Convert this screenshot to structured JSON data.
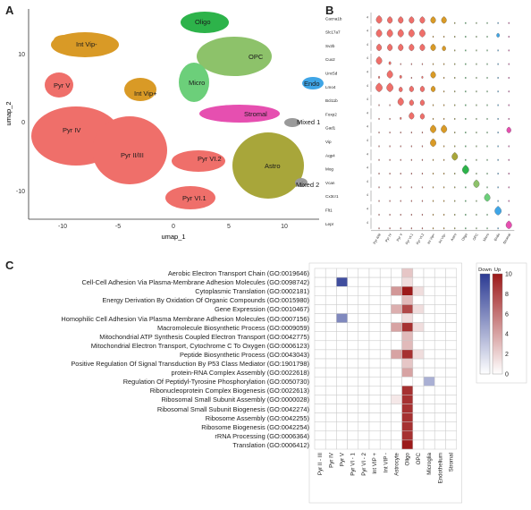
{
  "panels": {
    "A": "A",
    "B": "B",
    "C": "C"
  },
  "umap": {
    "xlabel": "umap_1",
    "ylabel": "umap_2",
    "x_ticks": [
      "-10",
      "-5",
      "0",
      "5",
      "10"
    ],
    "y_ticks": [
      "10",
      "0",
      "-10"
    ],
    "cluster_labels": [
      "Oligo",
      "Int Vip-",
      "OPC",
      "Pyr V",
      "Int Vip+",
      "Micro",
      "Endo",
      "Stromal",
      "Mixed 1",
      "Pyr IV",
      "Pyr II/III",
      "Pyr VI.2",
      "Astro",
      "Mixed 2",
      "Pyr VI.1"
    ],
    "colors": {
      "pyr": "#ef6f6a",
      "int": "#d99a26",
      "oligo": "#2db34a",
      "opc": "#8dc26a",
      "micro": "#6ccf7a",
      "endo": "#3fa5e6",
      "stromal": "#e64fb0",
      "astro": "#a8a63a",
      "mixed": "#9a9a9a"
    }
  },
  "violin": {
    "genes": [
      "Cacna1b",
      "Slc17a7",
      "Sv2b",
      "Cux2",
      "Unc5d",
      "Lmo4",
      "Bcl11b",
      "Foxp2",
      "Gad1",
      "Vip",
      "Aqp4",
      "Mog",
      "Vcan",
      "Cx3cr1",
      "Flt1",
      "Lepr"
    ],
    "clusters": [
      "Pyr II/III",
      "Pyr IV",
      "Pyr V",
      "Pyr VI.1",
      "Pyr VI.2",
      "Int Vip+",
      "Int Vip-",
      "Astro",
      "Oligo",
      "OPC",
      "Micro",
      "Endo",
      "Stromal"
    ]
  },
  "heatmap": {
    "terms": [
      "Aerobic Electron Transport Chain (GO:0019646)",
      "Cell-Cell Adhesion Via Plasma-Membrane Adhesion Molecules (GO:0098742)",
      "Cytoplasmic Translation (GO:0002181)",
      "Energy Derivation By Oxidation Of Organic Compounds (GO:0015980)",
      "Gene Expression (GO:0010467)",
      "Homophilic Cell Adhesion Via Plasma Membrane Adhesion Molecules (GO:0007156)",
      "Macromolecule Biosynthetic Process (GO:0009059)",
      "Mitochondrial ATP Synthesis Coupled Electron Transport (GO:0042775)",
      "Mitochondrial Electron Transport, Cytochrome C To Oxygen (GO:0006123)",
      "Peptide Biosynthetic Process (GO:0043043)",
      "Positive Regulation Of Signal Transduction By P53 Class Mediator (GO:1901798)",
      "protein-RNA Complex Assembly (GO:0022618)",
      "Regulation Of Peptidyl-Tyrosine Phosphorylation (GO:0050730)",
      "Ribonucleoprotein Complex Biogenesis (GO:0022613)",
      "Ribosomal Small Subunit Assembly (GO:0000028)",
      "Ribosomal Small Subunit Biogenesis (GO:0042274)",
      "Ribosome Assembly (GO:0042255)",
      "Ribosome Biogenesis (GO:0042254)",
      "rRNA Processing (GO:0006364)",
      "Translation (GO:0006412)"
    ],
    "columns": [
      "Pyr II - III",
      "Pyr IV",
      "Pyr V",
      "Pyr VI - 1",
      "Pyr VI - 2",
      "Int VIP +",
      "Int VIP -",
      "Astrocyte",
      "Oligo",
      "OPC",
      "Microglia",
      "Endothelium",
      "Stromal"
    ],
    "legend": {
      "down_label": "Down",
      "up_label": "Up",
      "ticks": [
        "10",
        "8",
        "6",
        "4",
        "2",
        "0"
      ],
      "max": 10,
      "down_color": "#2b3a93",
      "up_color": "#9c1a1a"
    },
    "cells": [
      {
        "row": 0,
        "col": 8,
        "dir": "up",
        "v": 2.5
      },
      {
        "row": 1,
        "col": 2,
        "dir": "down",
        "v": 9
      },
      {
        "row": 1,
        "col": 8,
        "dir": "up",
        "v": 1.5
      },
      {
        "row": 2,
        "col": 7,
        "dir": "up",
        "v": 4.5
      },
      {
        "row": 2,
        "col": 8,
        "dir": "up",
        "v": 10
      },
      {
        "row": 2,
        "col": 9,
        "dir": "up",
        "v": 1.5
      },
      {
        "row": 3,
        "col": 8,
        "dir": "up",
        "v": 3
      },
      {
        "row": 4,
        "col": 7,
        "dir": "up",
        "v": 3.5
      },
      {
        "row": 4,
        "col": 8,
        "dir": "up",
        "v": 8
      },
      {
        "row": 4,
        "col": 9,
        "dir": "up",
        "v": 1.5
      },
      {
        "row": 5,
        "col": 2,
        "dir": "down",
        "v": 6
      },
      {
        "row": 5,
        "col": 8,
        "dir": "up",
        "v": 1.5
      },
      {
        "row": 6,
        "col": 7,
        "dir": "up",
        "v": 4
      },
      {
        "row": 6,
        "col": 8,
        "dir": "up",
        "v": 9
      },
      {
        "row": 6,
        "col": 9,
        "dir": "up",
        "v": 1.5
      },
      {
        "row": 7,
        "col": 8,
        "dir": "up",
        "v": 3
      },
      {
        "row": 8,
        "col": 8,
        "dir": "up",
        "v": 3
      },
      {
        "row": 9,
        "col": 7,
        "dir": "up",
        "v": 4
      },
      {
        "row": 9,
        "col": 8,
        "dir": "up",
        "v": 9
      },
      {
        "row": 9,
        "col": 9,
        "dir": "up",
        "v": 1.5
      },
      {
        "row": 10,
        "col": 8,
        "dir": "up",
        "v": 2.5
      },
      {
        "row": 11,
        "col": 8,
        "dir": "up",
        "v": 4
      },
      {
        "row": 12,
        "col": 10,
        "dir": "down",
        "v": 4
      },
      {
        "row": 13,
        "col": 8,
        "dir": "up",
        "v": 9
      },
      {
        "row": 14,
        "col": 7,
        "dir": "up",
        "v": 1
      },
      {
        "row": 14,
        "col": 8,
        "dir": "up",
        "v": 9
      },
      {
        "row": 15,
        "col": 8,
        "dir": "up",
        "v": 9
      },
      {
        "row": 16,
        "col": 8,
        "dir": "up",
        "v": 9
      },
      {
        "row": 17,
        "col": 8,
        "dir": "up",
        "v": 9
      },
      {
        "row": 18,
        "col": 8,
        "dir": "up",
        "v": 9
      },
      {
        "row": 19,
        "col": 8,
        "dir": "up",
        "v": 10
      }
    ]
  }
}
